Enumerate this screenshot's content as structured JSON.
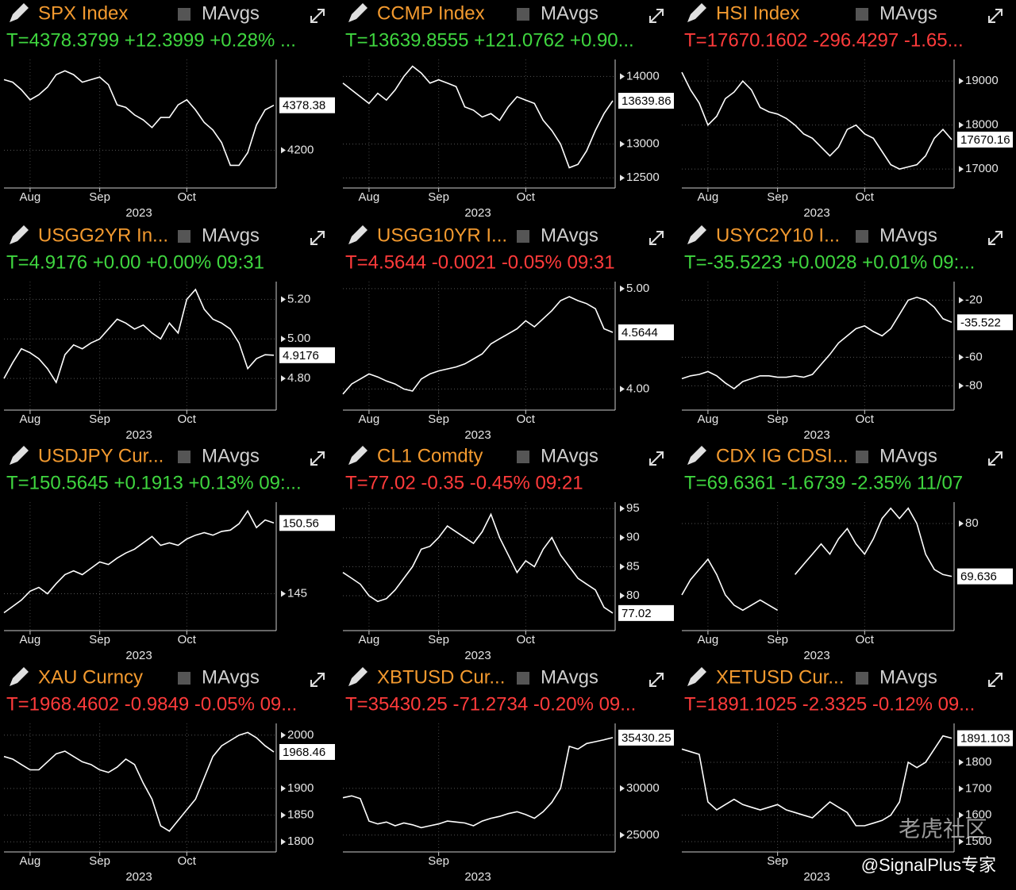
{
  "chart_data": [
    {
      "type": "line",
      "title": "SPX Index",
      "legend": "MAvgs",
      "subtitle": "T=4378.3799 +12.3999 +0.28% ...",
      "subtitle_color": "#3fd63f",
      "color": "#ffffff",
      "grid": true,
      "xlabel": "2023",
      "xlim": [
        0,
        31
      ],
      "xticks": [
        {
          "value": 3,
          "label": "Aug"
        },
        {
          "value": 11,
          "label": "Sep"
        },
        {
          "value": 21,
          "label": "Oct"
        }
      ],
      "ylim": [
        4050,
        4560
      ],
      "yticks": [
        4200
      ],
      "last_value_label": "4378.38",
      "values": [
        4480,
        4470,
        4440,
        4400,
        4420,
        4450,
        4500,
        4515,
        4500,
        4470,
        4480,
        4490,
        4460,
        4380,
        4370,
        4340,
        4320,
        4290,
        4330,
        4330,
        4380,
        4400,
        4360,
        4310,
        4280,
        4230,
        4140,
        4140,
        4190,
        4300,
        4360,
        4378.38
      ]
    },
    {
      "type": "line",
      "title": "CCMP Index",
      "legend": "MAvgs",
      "subtitle": "T=13639.8555 +121.0762 +0.90...",
      "subtitle_color": "#3fd63f",
      "color": "#ffffff",
      "grid": true,
      "xlabel": "2023",
      "xlim": [
        0,
        31
      ],
      "xticks": [
        {
          "value": 3,
          "label": "Aug"
        },
        {
          "value": 11,
          "label": "Sep"
        },
        {
          "value": 21,
          "label": "Oct"
        }
      ],
      "ylim": [
        12350,
        14250
      ],
      "yticks": [
        14000,
        13000,
        12500
      ],
      "last_value_label": "13639.86",
      "values": [
        13900,
        13800,
        13700,
        13600,
        13750,
        13650,
        13800,
        14000,
        14150,
        14050,
        13900,
        13950,
        13900,
        13850,
        13550,
        13500,
        13400,
        13450,
        13350,
        13550,
        13700,
        13650,
        13600,
        13350,
        13200,
        13000,
        12650,
        12700,
        12900,
        13200,
        13450,
        13639.86
      ]
    },
    {
      "type": "line",
      "title": "HSI Index",
      "legend": "MAvgs",
      "subtitle": "T=17670.1602 -296.4297 -1.65...",
      "subtitle_color": "#ff3b3b",
      "color": "#ffffff",
      "grid": true,
      "xlabel": "2023",
      "xlim": [
        0,
        31
      ],
      "xticks": [
        {
          "value": 3,
          "label": "Aug"
        },
        {
          "value": 11,
          "label": "Sep"
        },
        {
          "value": 21,
          "label": "Oct"
        }
      ],
      "ylim": [
        16570,
        19490
      ],
      "yticks": [
        19000,
        18000,
        17000
      ],
      "last_value_label": "17670.16",
      "values": [
        19200,
        18800,
        18500,
        18000,
        18200,
        18600,
        18750,
        19000,
        18800,
        18400,
        18300,
        18250,
        18150,
        18000,
        17800,
        17700,
        17500,
        17300,
        17500,
        17900,
        18000,
        17800,
        17700,
        17400,
        17100,
        17000,
        17050,
        17100,
        17300,
        17700,
        17900,
        17670.16
      ]
    },
    {
      "type": "line",
      "title": "USGG2YR In...",
      "legend": "MAvgs",
      "subtitle": "T=4.9176 +0.00 +0.00% 09:31",
      "subtitle_color": "#3fd63f",
      "color": "#ffffff",
      "grid": true,
      "xlabel": "2023",
      "xlim": [
        0,
        31
      ],
      "xticks": [
        {
          "value": 3,
          "label": "Aug"
        },
        {
          "value": 11,
          "label": "Sep"
        },
        {
          "value": 21,
          "label": "Oct"
        }
      ],
      "ylim": [
        4.64,
        5.29
      ],
      "yticks": [
        {
          "value": 5.2,
          "label": "5.20"
        },
        {
          "value": 5,
          "label": "5.00"
        },
        {
          "value": 4.8,
          "label": "4.80"
        }
      ],
      "last_value_label": "4.9176",
      "values": [
        4.8,
        4.88,
        4.95,
        4.93,
        4.9,
        4.85,
        4.78,
        4.92,
        4.97,
        4.95,
        4.98,
        5.0,
        5.05,
        5.1,
        5.08,
        5.05,
        5.07,
        5.03,
        5.0,
        5.08,
        5.03,
        5.2,
        5.25,
        5.15,
        5.1,
        5.08,
        5.05,
        4.98,
        4.85,
        4.9,
        4.92,
        4.9176
      ]
    },
    {
      "type": "line",
      "title": "USGG10YR I...",
      "legend": "MAvgs",
      "subtitle": "T=4.5644 -0.0021 -0.05% 09:31",
      "subtitle_color": "#ff3b3b",
      "color": "#ffffff",
      "grid": true,
      "xlabel": "2023",
      "xlim": [
        0,
        31
      ],
      "xticks": [
        {
          "value": 3,
          "label": "Aug"
        },
        {
          "value": 11,
          "label": "Sep"
        },
        {
          "value": 21,
          "label": "Oct"
        }
      ],
      "ylim": [
        3.79,
        5.07
      ],
      "yticks": [
        {
          "value": 5,
          "label": "5.00"
        },
        {
          "value": 4,
          "label": "4.00"
        }
      ],
      "last_value_label": "4.5644",
      "values": [
        3.95,
        4.05,
        4.1,
        4.15,
        4.12,
        4.08,
        4.05,
        4.0,
        3.98,
        4.1,
        4.15,
        4.18,
        4.2,
        4.22,
        4.25,
        4.3,
        4.35,
        4.45,
        4.5,
        4.55,
        4.6,
        4.68,
        4.62,
        4.7,
        4.78,
        4.88,
        4.92,
        4.88,
        4.85,
        4.8,
        4.6,
        4.5644
      ]
    },
    {
      "type": "line",
      "title": "USYC2Y10 I...",
      "legend": "MAvgs",
      "subtitle": "T=-35.5223 +0.0028 +0.01% 09:...",
      "subtitle_color": "#3fd63f",
      "color": "#ffffff",
      "grid": true,
      "xlabel": "2023",
      "xlim": [
        0,
        31
      ],
      "xticks": [
        {
          "value": 3,
          "label": "Aug"
        },
        {
          "value": 11,
          "label": "Sep"
        },
        {
          "value": 21,
          "label": "Oct"
        }
      ],
      "ylim": [
        -97,
        -7
      ],
      "yticks": [
        -20,
        -60,
        -80
      ],
      "last_value_label": "-35.522",
      "values": [
        -75,
        -73,
        -72,
        -70,
        -73,
        -78,
        -82,
        -77,
        -75,
        -73,
        -73,
        -74,
        -74,
        -73,
        -74,
        -72,
        -65,
        -58,
        -50,
        -45,
        -40,
        -38,
        -42,
        -45,
        -40,
        -30,
        -20,
        -18,
        -20,
        -25,
        -33,
        -35.522
      ]
    },
    {
      "type": "line",
      "title": "USDJPY Cur...",
      "legend": "MAvgs",
      "subtitle": "T=150.5645 +0.1913 +0.13% 09:...",
      "subtitle_color": "#3fd63f",
      "color": "#ffffff",
      "grid": true,
      "xlabel": "2023",
      "xlim": [
        0,
        31
      ],
      "xticks": [
        {
          "value": 3,
          "label": "Aug"
        },
        {
          "value": 11,
          "label": "Sep"
        },
        {
          "value": 21,
          "label": "Oct"
        }
      ],
      "ylim": [
        142.1,
        152.2
      ],
      "yticks": [
        145
      ],
      "last_value_label": "150.56",
      "values": [
        143.5,
        144,
        144.5,
        145.2,
        145.5,
        145,
        145.8,
        146.5,
        146.8,
        146.5,
        147,
        147.5,
        147.3,
        147.8,
        148.2,
        148.5,
        149,
        149.5,
        148.8,
        149,
        148.8,
        149.3,
        149.6,
        149.8,
        149.6,
        149.9,
        150,
        150.5,
        151.5,
        150.2,
        150.8,
        150.56
      ]
    },
    {
      "type": "line",
      "title": "CL1 Comdty",
      "legend": "MAvgs",
      "subtitle": "T=77.02 -0.35 -0.45% 09:21",
      "subtitle_color": "#ff3b3b",
      "color": "#ffffff",
      "grid": true,
      "xlabel": "2023",
      "xlim": [
        0,
        31
      ],
      "xticks": [
        {
          "value": 3,
          "label": "Aug"
        },
        {
          "value": 11,
          "label": "Sep"
        },
        {
          "value": 21,
          "label": "Oct"
        }
      ],
      "ylim": [
        74,
        96.1
      ],
      "yticks": [
        95,
        90,
        85,
        80
      ],
      "last_value_label": "77.02",
      "values": [
        84,
        83,
        82,
        80,
        79,
        79.5,
        81,
        83,
        85,
        88,
        88.5,
        90,
        92,
        91,
        90,
        89,
        91,
        94,
        90,
        87,
        84,
        86,
        85,
        88,
        90,
        87,
        85,
        83,
        82,
        81,
        78,
        77.02
      ]
    },
    {
      "type": "line",
      "title": "CDX IG CDSI...",
      "legend": "MAvgs",
      "subtitle": "T=69.6361 -1.6739 -2.35% 11/07",
      "subtitle_color": "#3fd63f",
      "color": "#ffffff",
      "grid": true,
      "xlabel": "2023",
      "xlim": [
        0,
        31
      ],
      "xticks": [
        {
          "value": 3,
          "label": "Aug"
        },
        {
          "value": 11,
          "label": "Sep"
        },
        {
          "value": 21,
          "label": "Oct"
        }
      ],
      "ylim": [
        59,
        84.2
      ],
      "yticks": [
        80
      ],
      "last_value_label": "69.636",
      "values": [
        66,
        69,
        71,
        73,
        70,
        66,
        64,
        63,
        64,
        65,
        64,
        63,
        null,
        70,
        72,
        74,
        76,
        74,
        77,
        79,
        76,
        74,
        77,
        81,
        83,
        81,
        83,
        80,
        74,
        71,
        70,
        69.636
      ]
    },
    {
      "type": "line",
      "title": "XAU Curncy",
      "legend": "MAvgs",
      "subtitle": "T=1968.4602 -0.9849 -0.05% 09...",
      "subtitle_color": "#ff3b3b",
      "color": "#ffffff",
      "grid": true,
      "xlabel": "2023",
      "xlim": [
        0,
        31
      ],
      "xticks": [
        {
          "value": 3,
          "label": "Aug"
        },
        {
          "value": 11,
          "label": "Sep"
        },
        {
          "value": 21,
          "label": "Oct"
        }
      ],
      "ylim": [
        1781,
        2022
      ],
      "yticks": [
        2000,
        1900,
        1850,
        1800
      ],
      "last_value_label": "1968.46",
      "values": [
        1960,
        1955,
        1945,
        1935,
        1935,
        1950,
        1965,
        1970,
        1960,
        1950,
        1945,
        1935,
        1930,
        1940,
        1955,
        1945,
        1910,
        1880,
        1830,
        1820,
        1840,
        1860,
        1880,
        1920,
        1960,
        1980,
        1990,
        2000,
        2005,
        1995,
        1980,
        1968.46
      ]
    },
    {
      "type": "line",
      "title": "XBTUSD Cur...",
      "legend": "MAvgs",
      "subtitle": "T=35430.25 -71.2734 -0.20% 09...",
      "subtitle_color": "#ff3b3b",
      "color": "#ffffff",
      "grid": true,
      "xlabel": "2023",
      "xlim": [
        0,
        31
      ],
      "xticks": [
        {
          "value": 11,
          "label": "Sep"
        }
      ],
      "ylim": [
        23200,
        36950
      ],
      "yticks": [
        30000,
        25000
      ],
      "last_value_label": "35430.25",
      "values": [
        29000,
        29200,
        28900,
        26500,
        26200,
        26400,
        26000,
        26300,
        26100,
        25800,
        26000,
        26200,
        26500,
        26400,
        26300,
        26000,
        26500,
        26800,
        27000,
        27300,
        27500,
        27200,
        26800,
        27500,
        28500,
        30000,
        34500,
        34200,
        34800,
        35000,
        35200,
        35430.25
      ]
    },
    {
      "type": "line",
      "title": "XETUSD Cur...",
      "legend": "MAvgs",
      "subtitle": "T=1891.1025 -2.3325 -0.12% 09...",
      "subtitle_color": "#ff3b3b",
      "color": "#ffffff",
      "grid": true,
      "xlabel": "2023",
      "xlim": [
        0,
        31
      ],
      "xticks": [
        {
          "value": 11,
          "label": "Sep"
        }
      ],
      "ylim": [
        1461,
        1947
      ],
      "yticks": [
        1800,
        1700,
        1600,
        1500
      ],
      "last_value_label": "1891.103",
      "values": [
        1850,
        1840,
        1830,
        1650,
        1620,
        1640,
        1660,
        1640,
        1630,
        1620,
        1630,
        1640,
        1620,
        1610,
        1600,
        1590,
        1620,
        1650,
        1630,
        1610,
        1560,
        1560,
        1570,
        1580,
        1600,
        1650,
        1800,
        1780,
        1800,
        1850,
        1900,
        1891.103
      ]
    }
  ],
  "watermark": {
    "brand": "老虎社区",
    "author": "@SignalPlus专家"
  }
}
